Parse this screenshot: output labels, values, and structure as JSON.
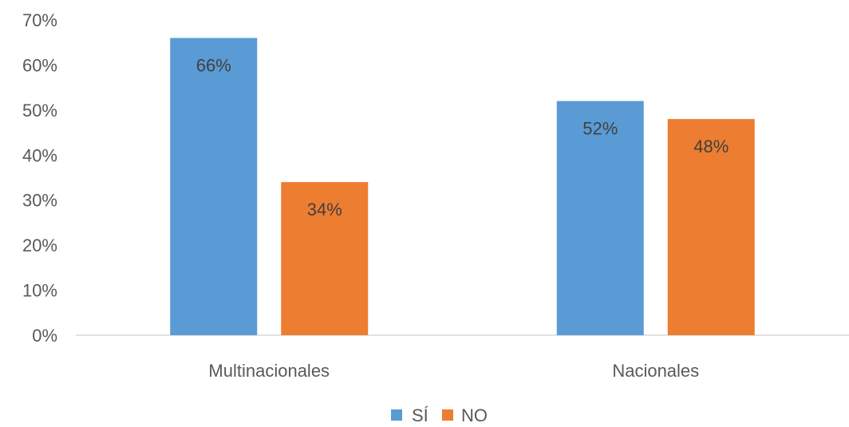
{
  "chart_data": {
    "type": "bar",
    "categories": [
      "Multinacionales",
      "Nacionales"
    ],
    "series": [
      {
        "name": "SÍ",
        "values": [
          66,
          52
        ],
        "labels": [
          "66%",
          "52%"
        ],
        "color": "#5B9BD5"
      },
      {
        "name": "NO",
        "values": [
          34,
          48
        ],
        "labels": [
          "34%",
          "48%"
        ],
        "color": "#ED7D31"
      }
    ],
    "ylim": [
      0,
      70
    ],
    "yticks": [
      0,
      10,
      20,
      30,
      40,
      50,
      60,
      70
    ],
    "ytick_labels": [
      "0%",
      "10%",
      "20%",
      "30%",
      "40%",
      "50%",
      "60%",
      "70%"
    ],
    "title": "",
    "xlabel": "",
    "ylabel": "",
    "grid": false,
    "legend_position": "bottom"
  }
}
